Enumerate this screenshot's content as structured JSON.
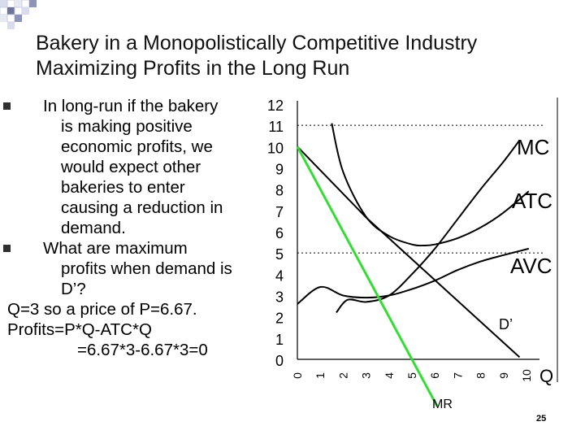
{
  "slide": {
    "title_lines": [
      "Bakery in a Monopolistically Competitive Industry",
      "Maximizing Profits in the Long Run"
    ],
    "page_number": "25"
  },
  "body": {
    "bullet1": [
      "In long-run if the bakery",
      "is making positive",
      "economic profits, we",
      "would expect other",
      "bakeries to enter",
      "causing a reduction in",
      "demand."
    ],
    "bullet2": [
      "What are maximum",
      "profits when demand is",
      "D’?"
    ],
    "extra": [
      "Q=3 so a price of P=6.67.",
      "Profits=P*Q-ATC*Q",
      "=6.67*3-6.67*3=0"
    ]
  },
  "chart_data": {
    "type": "line",
    "x_ticks": [
      0,
      1,
      2,
      3,
      4,
      5,
      6,
      7,
      8,
      9,
      10
    ],
    "y_ticks": [
      0,
      1,
      2,
      3,
      4,
      5,
      6,
      7,
      8,
      9,
      10,
      11,
      12
    ],
    "xlim": [
      0,
      10
    ],
    "ylim": [
      0,
      12
    ],
    "xlabel": "Q",
    "grid": "horizontal dashes at 5 and 11",
    "series": [
      {
        "name": "MC",
        "color": "#000000",
        "x": [
          1.7,
          2.2,
          3,
          4,
          5,
          6,
          7,
          8,
          9,
          9.7
        ],
        "y": [
          2.2,
          2.8,
          2.7,
          3.0,
          4.0,
          5.2,
          6.6,
          8.0,
          9.3,
          10.3
        ]
      },
      {
        "name": "ATC",
        "color": "#000000",
        "x": [
          1.5,
          2,
          3,
          4,
          5,
          5.5,
          6,
          7,
          8,
          9,
          10.1
        ],
        "y": [
          11.1,
          8.8,
          6.7,
          5.8,
          5.4,
          5.35,
          5.4,
          5.7,
          6.2,
          6.9,
          7.9
        ]
      },
      {
        "name": "AVC",
        "color": "#000000",
        "x": [
          0,
          1,
          2,
          3,
          4,
          5,
          6,
          7,
          8,
          9,
          10.1
        ],
        "y": [
          2.6,
          3.4,
          3.0,
          2.9,
          3.0,
          3.3,
          3.7,
          4.2,
          4.6,
          4.9,
          5.2
        ]
      },
      {
        "name": "D’",
        "color": "#000000",
        "x": [
          0,
          3,
          9.7
        ],
        "y": [
          10,
          6.67,
          0.1
        ]
      },
      {
        "name": "MR",
        "color": "#33dd33",
        "x": [
          0,
          6.1
        ],
        "y": [
          10,
          -2.2
        ]
      }
    ]
  }
}
